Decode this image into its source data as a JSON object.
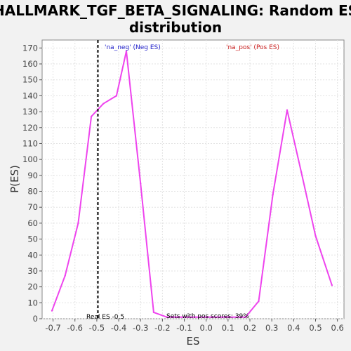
{
  "chart_data": {
    "type": "line",
    "title_line1": "HALLMARK_TGF_BETA_SIGNALING: Random ES",
    "title_line2": "distribution",
    "xlabel": "ES",
    "ylabel": "P(ES)",
    "xlim": [
      -0.75,
      0.63
    ],
    "ylim": [
      0,
      175
    ],
    "xticks": [
      -0.7,
      -0.6,
      -0.5,
      -0.4,
      -0.3,
      -0.2,
      -0.1,
      0.0,
      0.1,
      0.2,
      0.3,
      0.4,
      0.5,
      0.6
    ],
    "xtick_labels": [
      "-0.7",
      "-0.6",
      "-0.5",
      "-0.4",
      "-0.3",
      "-0.2",
      "-0.1",
      "0.0",
      "0.1",
      "0.2",
      "0.3",
      "0.4",
      "0.5",
      "0.6"
    ],
    "yticks": [
      0,
      10,
      20,
      30,
      40,
      50,
      60,
      70,
      80,
      90,
      100,
      110,
      120,
      130,
      140,
      150,
      160,
      170
    ],
    "ytick_labels": [
      "0",
      "10",
      "20",
      "30",
      "40",
      "50",
      "60",
      "70",
      "80",
      "90",
      "100",
      "110",
      "120",
      "130",
      "140",
      "150",
      "160",
      "170"
    ],
    "grid": true,
    "series": [
      {
        "color": "#ee44ee",
        "x": [
          -0.705,
          -0.645,
          -0.585,
          -0.525,
          -0.47,
          -0.41,
          -0.365,
          -0.3,
          -0.24,
          -0.18,
          0.18,
          0.24,
          0.305,
          0.37,
          0.435,
          0.5,
          0.575
        ],
        "y": [
          5,
          27,
          60,
          127,
          135,
          140,
          168,
          85,
          4,
          1,
          1,
          11,
          78,
          131,
          92,
          52,
          21
        ]
      }
    ],
    "real_es_line": {
      "x": -0.495,
      "label": "Real ES -0.5",
      "color": "#000000"
    },
    "annotations": {
      "neg_label": "'na_neg' (Neg ES)",
      "neg_color": "#2222cc",
      "pos_label": "'na_pos' (Pos ES)",
      "pos_color": "#cc2222",
      "pos_scores_text": "Sets with pos scores: 39%"
    }
  }
}
